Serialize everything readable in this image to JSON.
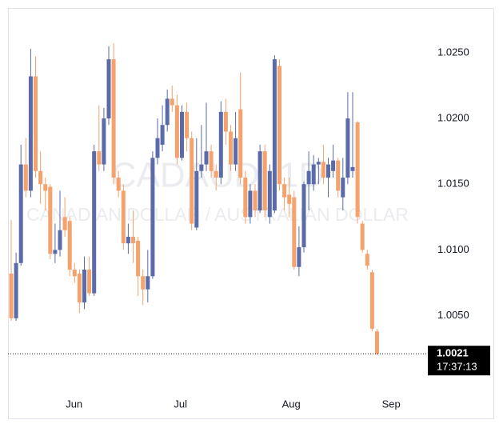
{
  "chart_data": {
    "type": "candlestick",
    "watermark": "CADAUD, 1D",
    "watermark_subtitle": "CANADIAN DOLLAR / AUSTRALIAN DOLLAR",
    "up_color": "#5b6aa8",
    "down_color": "#f5a26d",
    "open": [
      1.0082,
      1.0048,
      1.009,
      1.0165,
      1.0145,
      1.0232,
      1.016,
      1.015,
      1.0148,
      1.0097,
      1.01,
      1.0125,
      1.0122,
      1.0085,
      1.0082,
      1.006,
      1.0085,
      1.0067,
      1.0175,
      1.0165,
      1.02,
      1.0245,
      1.0155,
      1.0145,
      1.0105,
      1.011,
      1.0107,
      1.008,
      1.007,
      1.008,
      1.017,
      1.018,
      1.0195,
      1.0215,
      1.021,
      1.017,
      1.0205,
      1.0185,
      1.0117,
      1.016,
      1.0165,
      1.0175,
      1.016,
      1.0155,
      1.0205,
      1.019,
      1.0165,
      1.0207,
      1.0155,
      1.0125,
      1.0145,
      1.013,
      1.0175,
      1.0125,
      1.013,
      1.024,
      1.015,
      1.0142,
      1.014,
      1.0087,
      1.0102,
      1.015,
      1.015,
      1.0165,
      1.0167,
      1.0155,
      1.016,
      1.0168,
      1.014,
      1.0155,
      1.016,
      1.0197,
      1.012,
      1.0097,
      1.0083,
      1.0038
    ],
    "high": [
      1.0123,
      1.0098,
      1.018,
      1.0185,
      1.0253,
      1.0247,
      1.0175,
      1.0155,
      1.015,
      1.012,
      1.0145,
      1.014,
      1.0125,
      1.009,
      1.0085,
      1.0095,
      1.0095,
      1.018,
      1.021,
      1.0208,
      1.0255,
      1.0257,
      1.016,
      1.015,
      1.012,
      1.013,
      1.011,
      1.0085,
      1.01,
      1.0175,
      1.02,
      1.021,
      1.0222,
      1.0225,
      1.0218,
      1.021,
      1.0212,
      1.019,
      1.0185,
      1.0195,
      1.0212,
      1.018,
      1.0165,
      1.0213,
      1.0215,
      1.0195,
      1.0205,
      1.0235,
      1.016,
      1.015,
      1.015,
      1.018,
      1.018,
      1.0165,
      1.0248,
      1.0245,
      1.0155,
      1.0155,
      1.0145,
      1.0118,
      1.0152,
      1.0175,
      1.0172,
      1.017,
      1.018,
      1.017,
      1.018,
      1.017,
      1.017,
      1.022,
      1.022,
      1.0198,
      1.0122,
      1.01,
      1.0085,
      1.004
    ],
    "low": [
      1.0046,
      1.0046,
      1.0088,
      1.014,
      1.014,
      1.0155,
      1.0135,
      1.013,
      1.0093,
      1.009,
      1.0095,
      1.011,
      1.008,
      1.0075,
      1.0052,
      1.0055,
      1.0065,
      1.0065,
      1.016,
      1.016,
      1.0195,
      1.015,
      1.014,
      1.01,
      1.0097,
      1.009,
      1.0065,
      1.0058,
      1.006,
      1.0078,
      1.0165,
      1.0175,
      1.019,
      1.0205,
      1.0165,
      1.0168,
      1.0175,
      1.0115,
      1.0115,
      1.0155,
      1.016,
      1.0155,
      1.0145,
      1.015,
      1.018,
      1.016,
      1.016,
      1.015,
      1.012,
      1.012,
      1.0125,
      1.0128,
      1.0125,
      1.012,
      1.0128,
      1.0145,
      1.013,
      1.0125,
      1.0085,
      1.008,
      1.0098,
      1.013,
      1.0145,
      1.015,
      1.015,
      1.014,
      1.0155,
      1.014,
      1.013,
      1.015,
      1.0155,
      1.012,
      1.0098,
      1.0085,
      1.0038,
      1.002
    ],
    "close": [
      1.0048,
      1.009,
      1.0165,
      1.0145,
      1.0232,
      1.016,
      1.015,
      1.0145,
      1.0097,
      1.01,
      1.0115,
      1.0115,
      1.0085,
      1.008,
      1.006,
      1.0085,
      1.0067,
      1.0175,
      1.0165,
      1.02,
      1.0245,
      1.0155,
      1.0145,
      1.0105,
      1.011,
      1.0105,
      1.008,
      1.007,
      1.008,
      1.017,
      1.0185,
      1.0195,
      1.0215,
      1.021,
      1.017,
      1.0205,
      1.0185,
      1.012,
      1.016,
      1.0165,
      1.0175,
      1.016,
      1.0155,
      1.0205,
      1.019,
      1.0165,
      1.0185,
      1.0155,
      1.0125,
      1.0145,
      1.013,
      1.0175,
      1.013,
      1.016,
      1.0245,
      1.015,
      1.014,
      1.0135,
      1.0087,
      1.0102,
      1.015,
      1.016,
      1.0165,
      1.0167,
      1.0155,
      1.0165,
      1.0168,
      1.0145,
      1.0155,
      1.02,
      1.0163,
      1.0125,
      1.01,
      1.0088,
      1.004,
      1.0021
    ],
    "ylim": [
      0.9998,
      1.0284
    ],
    "yticks": [
      {
        "value": 1.005,
        "label": "1.0050"
      },
      {
        "value": 1.01,
        "label": "1.0100"
      },
      {
        "value": 1.015,
        "label": "1.0150"
      },
      {
        "value": 1.02,
        "label": "1.0200"
      },
      {
        "value": 1.025,
        "label": "1.0250"
      }
    ],
    "xlim": [
      -0.7,
      86
    ],
    "xticks": [
      {
        "value": 12.9,
        "label": "Jun"
      },
      {
        "value": 34.7,
        "label": "Jul"
      },
      {
        "value": 57.4,
        "label": "Aug"
      },
      {
        "value": 77.9,
        "label": "Sep"
      }
    ],
    "last_price": {
      "value": 1.0021,
      "label": "1.0021"
    },
    "countdown": "17:37:13"
  }
}
